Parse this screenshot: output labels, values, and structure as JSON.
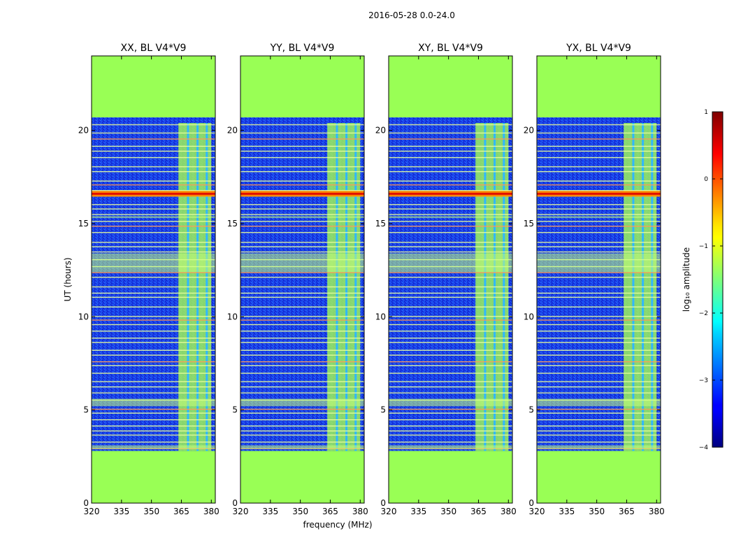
{
  "figure_title": "2016-05-28 0.0-24.0",
  "chart_data": {
    "type": "heatmap",
    "title": "2016-05-28 0.0-24.0",
    "xlabel": "frequency (MHz)",
    "ylabel": "UT (hours)",
    "xlim": [
      320,
      382
    ],
    "ylim": [
      0,
      24
    ],
    "xticks": [
      320,
      335,
      350,
      365,
      380
    ],
    "yticks": [
      0,
      5,
      10,
      15,
      20
    ],
    "data_extent_ut": [
      2.8,
      20.7
    ],
    "bright_band_mhz": [
      363.5,
      380
    ],
    "strong_rfi_ut": [
      16.6
    ],
    "colorbar": {
      "label": "log₁₀ amplitude",
      "range": [
        -4,
        1
      ],
      "ticks": [
        -4,
        -3,
        -2,
        -1,
        0,
        1
      ],
      "colormap": "jet"
    },
    "panels": [
      {
        "title": "XX, BL V4*V9"
      },
      {
        "title": "YY, BL V4*V9"
      },
      {
        "title": "XY, BL V4*V9"
      },
      {
        "title": "YX, BL V4*V9"
      }
    ],
    "fill_color": "#99ff55"
  }
}
